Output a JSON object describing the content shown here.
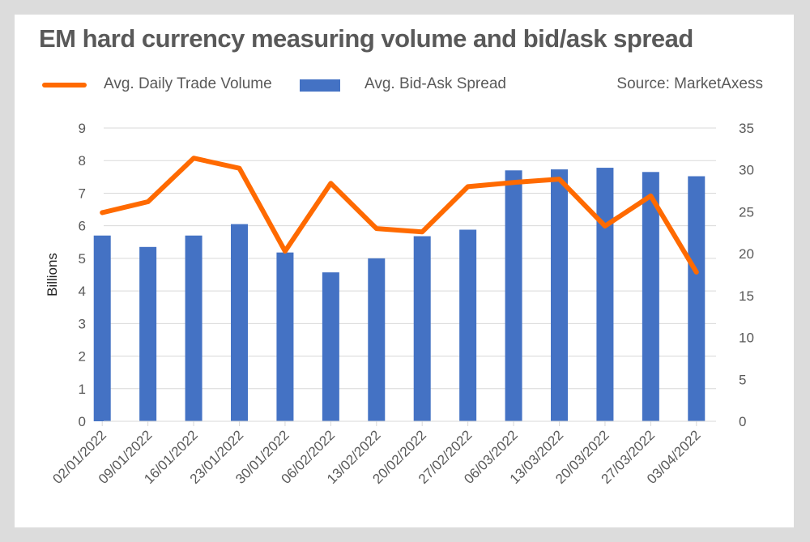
{
  "title": "EM hard currency measuring volume and bid/ask spread",
  "legend": {
    "line_label": "Avg. Daily Trade Volume",
    "bar_label": "Avg. Bid-Ask Spread",
    "source": "Source: MarketAxess"
  },
  "colors": {
    "line": "#ff6a00",
    "bar": "#4472c4",
    "grid": "#d9d9d9",
    "background": "#ffffff",
    "frame": "#dcdcdc"
  },
  "chart_data": {
    "type": "bar",
    "title": "EM hard currency measuring volume and bid/ask spread",
    "categories": [
      "02/01/2022",
      "09/01/2022",
      "16/01/2022",
      "23/01/2022",
      "30/01/2022",
      "06/02/2022",
      "13/02/2022",
      "20/02/2022",
      "27/02/2022",
      "06/03/2022",
      "13/03/2022",
      "20/03/2022",
      "27/03/2022",
      "03/04/2022"
    ],
    "ylabel": "Billions",
    "ylim": [
      0,
      9
    ],
    "yticks": [
      0,
      1,
      2,
      3,
      4,
      5,
      6,
      7,
      8,
      9
    ],
    "y2lim": [
      0,
      35
    ],
    "y2ticks": [
      0,
      5,
      10,
      15,
      20,
      25,
      30,
      35
    ],
    "grid": true,
    "legend_position": "top",
    "series": [
      {
        "name": "Avg. Bid-Ask Spread",
        "type": "bar",
        "axis": "left",
        "values": [
          5.7,
          5.35,
          5.7,
          6.05,
          5.18,
          4.57,
          5.0,
          5.68,
          5.88,
          7.7,
          7.73,
          7.78,
          7.65,
          7.52
        ]
      },
      {
        "name": "Avg. Daily Trade Volume",
        "type": "line",
        "axis": "right",
        "values": [
          24.9,
          26.2,
          31.4,
          30.2,
          20.3,
          28.4,
          23.0,
          22.6,
          28.0,
          28.5,
          28.9,
          23.3,
          26.9,
          17.8
        ]
      }
    ]
  }
}
